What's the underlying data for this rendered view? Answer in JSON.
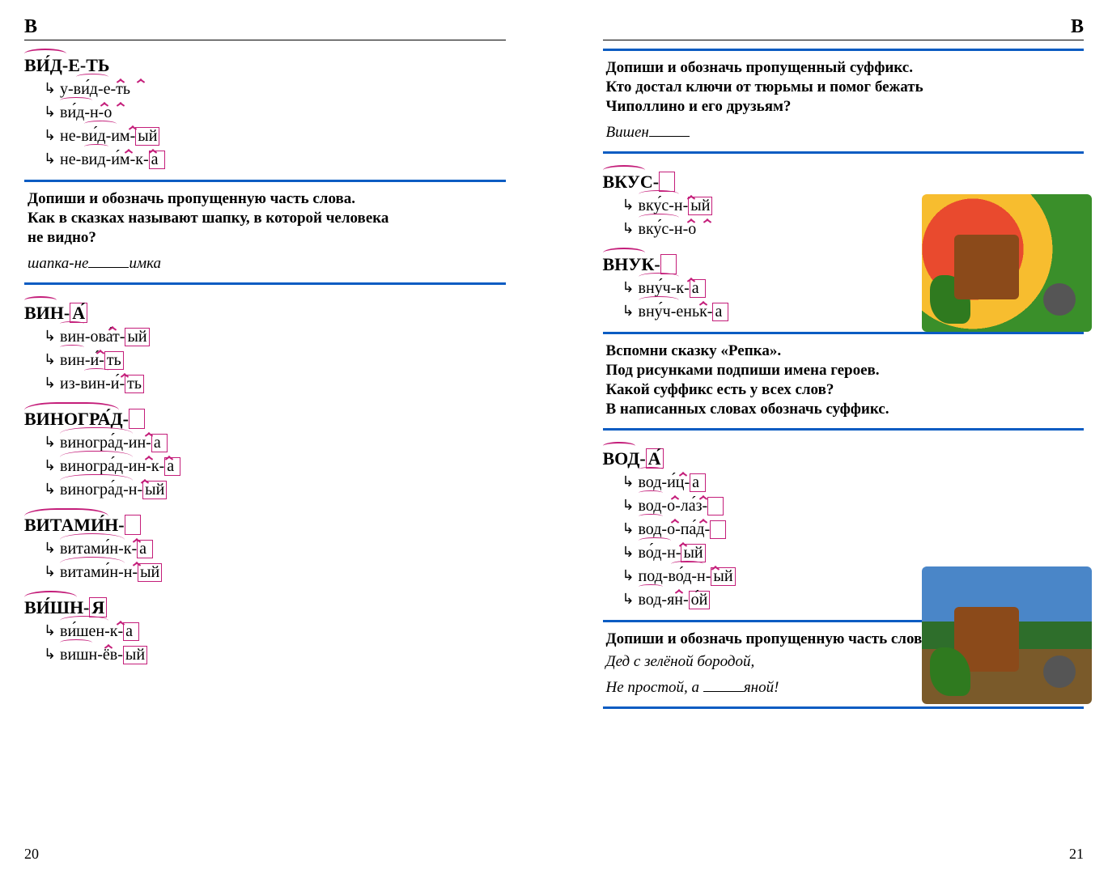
{
  "letter": "В",
  "colors": {
    "morpheme": "#c41e7a",
    "rule": "#0b5cc2",
    "text": "#000000",
    "background": "#ffffff"
  },
  "left": {
    "pagenum": "20",
    "entries": [
      {
        "head": "ВИ́Д-Е-ТЬ",
        "derivs": [
          {
            "text": "у-ви́д-е-ть"
          },
          {
            "text": "ви́д-н-о"
          },
          {
            "text": "не-ви́д-им-",
            "endbox": "ый"
          },
          {
            "text": "не-вид-и́м-к-",
            "endbox": "а"
          }
        ]
      }
    ],
    "task1": {
      "lines": [
        "Допиши и обозначь пропущенную часть слова.",
        "Как в сказках называют шапку, в которой человека",
        "не видно?"
      ],
      "fill_before": "шапка-не",
      "fill_after": "имка"
    },
    "entries2": [
      {
        "head": "ВИН-",
        "head_end": "А́",
        "derivs": [
          {
            "text": "вин-ова́т-",
            "endbox": "ый"
          },
          {
            "text": "вин-и́-",
            "endbox": "ть"
          },
          {
            "text": "из-вин-и́-",
            "endbox": "ть"
          }
        ]
      },
      {
        "head": "ВИНОГРА́Д-",
        "head_end_empty": true,
        "derivs": [
          {
            "text": "виногра́д-ин-",
            "endbox": "а"
          },
          {
            "text": "виногра́д-ин-к-",
            "endbox": "а"
          },
          {
            "text": "виногра́д-н-",
            "endbox": "ый"
          }
        ]
      },
      {
        "head": "ВИТАМИ́Н-",
        "head_end_empty": true,
        "derivs": [
          {
            "text": "витами́н-к-",
            "endbox": "а"
          },
          {
            "text": "витами́н-н-",
            "endbox": "ый"
          }
        ]
      },
      {
        "head": "ВИ́ШН-",
        "head_end": "Я",
        "derivs": [
          {
            "text": "ви́шен-к-",
            "endbox": "а"
          },
          {
            "text": "вишн-ёв-",
            "endbox": "ый"
          }
        ]
      }
    ]
  },
  "right": {
    "pagenum": "21",
    "task1": {
      "lines": [
        "Допиши и обозначь пропущенный суффикс.",
        "Кто достал ключи от тюрьмы и помог бежать",
        "Чиполлино и его друзьям?"
      ],
      "fill_before": "Вишен"
    },
    "entries": [
      {
        "head": "ВКУС-",
        "head_end_empty": true,
        "derivs": [
          {
            "text": "вку́с-н-",
            "endbox": "ый"
          },
          {
            "text": "вку́с-н-о"
          }
        ]
      },
      {
        "head": "ВНУК-",
        "head_end_empty": true,
        "derivs": [
          {
            "text": "вну́ч-к-",
            "endbox": "а"
          },
          {
            "text": "вну́ч-еньк-",
            "endbox": "а"
          }
        ]
      }
    ],
    "task2": {
      "lines": [
        "Вспомни сказку «Репка».",
        "Под рисунками подпиши имена героев.",
        "Какой суффикс есть у всех слов?",
        "В написанных словах обозначь суффикс."
      ]
    },
    "entries2": [
      {
        "head": "ВОД-",
        "head_end": "А́",
        "derivs": [
          {
            "text": "вод-и́ц-",
            "endbox": "а"
          },
          {
            "text": "вод-о-ла́з-",
            "endbox": ""
          },
          {
            "text": "вод-о-па́д-",
            "endbox": ""
          },
          {
            "text": "во́д-н-",
            "endbox": "ый"
          },
          {
            "text": "под-во́д-н-",
            "endbox": "ый"
          },
          {
            "text": "вод-ян-",
            "endbox": "о́й"
          }
        ]
      }
    ],
    "task3": {
      "lines": [
        "Допиши и обозначь пропущенную часть слова."
      ],
      "verse1": "Дед с зелёной бородой,",
      "verse2_before": "Не простой, а ",
      "verse2_after": "яной!"
    }
  }
}
